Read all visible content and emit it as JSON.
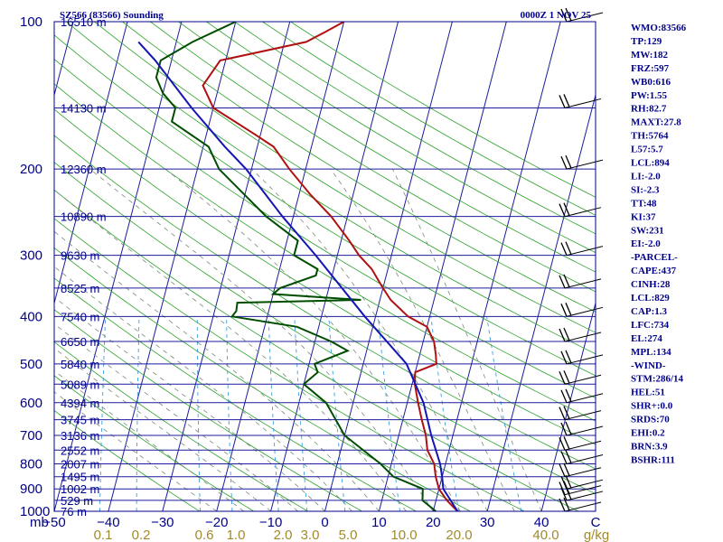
{
  "header": {
    "left": "SZ566 (83566) Sounding",
    "right": "0000Z  1 NOV 25"
  },
  "chart_data": {
    "type": "line",
    "title": "SZ566 (83566) Sounding",
    "pressure_levels": [
      100,
      200,
      300,
      400,
      500,
      600,
      700,
      800,
      900,
      1000
    ],
    "pressure_unit": "mb",
    "height_labels": [
      {
        "p": 100,
        "h": "16510 m"
      },
      {
        "p": 150,
        "h": "14130 m"
      },
      {
        "p": 200,
        "h": "12360 m"
      },
      {
        "p": 250,
        "h": "10890 m"
      },
      {
        "p": 300,
        "h": "9630 m"
      },
      {
        "p": 350,
        "h": "8525 m"
      },
      {
        "p": 400,
        "h": "7540 m"
      },
      {
        "p": 450,
        "h": "6650 m"
      },
      {
        "p": 500,
        "h": "5840 m"
      },
      {
        "p": 550,
        "h": "5089 m"
      },
      {
        "p": 600,
        "h": "4394 m"
      },
      {
        "p": 650,
        "h": "3745 m"
      },
      {
        "p": 700,
        "h": "3136 m"
      },
      {
        "p": 750,
        "h": "2552 m"
      },
      {
        "p": 800,
        "h": "2007 m"
      },
      {
        "p": 850,
        "h": "1495 m"
      },
      {
        "p": 900,
        "h": "1002 m"
      },
      {
        "p": 950,
        "h": "529 m"
      },
      {
        "p": 1000,
        "h": "76 m"
      }
    ],
    "temperature_ticks": [
      -50,
      -40,
      -30,
      -20,
      -10,
      0,
      10,
      20,
      30,
      40
    ],
    "xlim": [
      -50,
      50
    ],
    "ylim": [
      1000,
      100
    ],
    "x_axis_right_label": "C",
    "mixing_ratio_ticks": [
      "0.1",
      "0.2",
      "0.6",
      "1.0",
      "2.0",
      "3.0",
      "5.0",
      "10.0",
      "20.0",
      "40.0"
    ],
    "mixing_ratio_unit": "g/kg",
    "series": [
      {
        "name": "Temperature",
        "color": "#b01010",
        "points": [
          [
            1000,
            24.5
          ],
          [
            950,
            22
          ],
          [
            900,
            20
          ],
          [
            850,
            18.8
          ],
          [
            800,
            17.9
          ],
          [
            750,
            16
          ],
          [
            700,
            15
          ],
          [
            650,
            13.5
          ],
          [
            600,
            12
          ],
          [
            550,
            10.5
          ],
          [
            520,
            10
          ],
          [
            500,
            13.5
          ],
          [
            480,
            13
          ],
          [
            450,
            12
          ],
          [
            420,
            10
          ],
          [
            400,
            6
          ],
          [
            370,
            2
          ],
          [
            350,
            0
          ],
          [
            320,
            -3
          ],
          [
            300,
            -6
          ],
          [
            280,
            -8.5
          ],
          [
            250,
            -13
          ],
          [
            225,
            -18
          ],
          [
            200,
            -23
          ],
          [
            180,
            -27
          ],
          [
            170,
            -31
          ],
          [
            150,
            -40
          ],
          [
            135,
            -43
          ],
          [
            120,
            -41
          ],
          [
            110,
            -26
          ],
          [
            105,
            -23
          ],
          [
            100,
            -20
          ]
        ]
      },
      {
        "name": "Dewpoint",
        "color": "#004d00",
        "points": [
          [
            1000,
            20.5
          ],
          [
            950,
            17.5
          ],
          [
            900,
            17
          ],
          [
            850,
            11
          ],
          [
            800,
            8
          ],
          [
            700,
            0
          ],
          [
            600,
            -5
          ],
          [
            550,
            -10
          ],
          [
            520,
            -8
          ],
          [
            500,
            -9
          ],
          [
            470,
            -3.5
          ],
          [
            450,
            -7
          ],
          [
            420,
            -14
          ],
          [
            400,
            -26.5
          ],
          [
            390,
            -26
          ],
          [
            375,
            -26.2
          ],
          [
            370,
            -3.5
          ],
          [
            360,
            -20
          ],
          [
            350,
            -19
          ],
          [
            330,
            -13
          ],
          [
            320,
            -13
          ],
          [
            300,
            -18
          ],
          [
            280,
            -18
          ],
          [
            250,
            -25
          ],
          [
            200,
            -36
          ],
          [
            180,
            -39
          ],
          [
            160,
            -47
          ],
          [
            150,
            -47
          ],
          [
            140,
            -50
          ],
          [
            130,
            -52
          ],
          [
            120,
            -52
          ],
          [
            110,
            -47
          ],
          [
            100,
            -40
          ]
        ]
      },
      {
        "name": "Parcel",
        "color": "#1515b5",
        "points": [
          [
            1000,
            24.5
          ],
          [
            950,
            22.7
          ],
          [
            900,
            20.8
          ],
          [
            850,
            20
          ],
          [
            800,
            19
          ],
          [
            700,
            16
          ],
          [
            600,
            13
          ],
          [
            500,
            8
          ],
          [
            400,
            -2
          ],
          [
            300,
            -14
          ],
          [
            250,
            -22
          ],
          [
            200,
            -31
          ],
          [
            180,
            -36
          ],
          [
            150,
            -44
          ],
          [
            120,
            -53
          ],
          [
            110,
            -57
          ]
        ]
      }
    ],
    "wind_barbs_pressures": [
      1000,
      950,
      925,
      900,
      850,
      800,
      750,
      700,
      650,
      600,
      550,
      500,
      450,
      400,
      350,
      300,
      250,
      200,
      150,
      100
    ],
    "grid": true
  },
  "indices": [
    "WMO:83566",
    "TP:129",
    "MW:182",
    "FRZ:597",
    "WB0:616",
    "PW:1.55",
    "RH:82.7",
    "MAXT:27.8",
    "TH:5764",
    "L57:5.7",
    "LCL:894",
    "LI:-2.0",
    "SI:-2.3",
    "TT:48",
    "KI:37",
    "SW:231",
    "EI:-2.0",
    "-PARCEL-",
    "CAPE:437",
    "CINH:28",
    "LCL:829",
    "CAP:1.3",
    "LFC:734",
    "EL:274",
    "MPL:134",
    "-WIND-",
    "STM:286/14",
    "HEL:51",
    "SHR+:0.0",
    "SRDS:70",
    "EHI:0.2",
    "BRN:3.9",
    "BSHR:111"
  ]
}
